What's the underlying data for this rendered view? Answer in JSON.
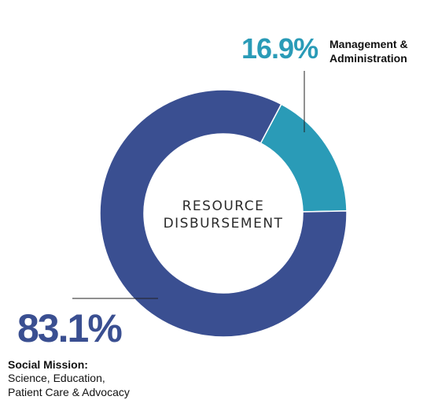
{
  "chart_data": {
    "type": "pie",
    "style": "donut",
    "center_label": [
      "RESOURCE",
      "DISBURSEMENT"
    ],
    "slices": [
      {
        "label": "Management & Administration",
        "value": 16.9,
        "display": "16.9%",
        "color": "#2a9bb7"
      },
      {
        "label": "Social Mission: Science, Education, Patient Care & Advocacy",
        "value": 83.1,
        "display": "83.1%",
        "color": "#3a4f91"
      }
    ]
  },
  "labels": {
    "management": {
      "percent": "16.9%",
      "line1": "Management &",
      "line2": "Administration"
    },
    "social": {
      "percent": "83.1%",
      "title": "Social Mission:",
      "line1": "Science, Education,",
      "line2": "Patient Care & Advocacy"
    }
  }
}
